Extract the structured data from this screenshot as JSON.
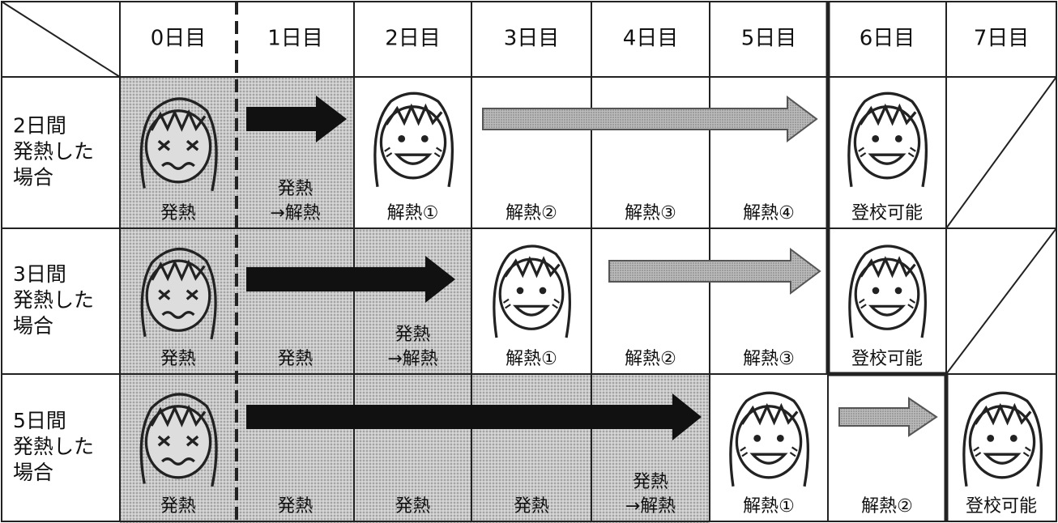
{
  "header": {
    "columns": [
      "0日目",
      "1日目",
      "2日目",
      "3日目",
      "4日目",
      "5日目",
      "6日目",
      "7日目"
    ]
  },
  "rows": [
    {
      "label": [
        "2日間",
        "発熱した",
        "場合"
      ],
      "cells": [
        [
          "発熱"
        ],
        [
          "発熱",
          "→解熱"
        ],
        [
          "解熱①"
        ],
        [
          "解熱②"
        ],
        [
          "解熱③"
        ],
        [
          "解熱④"
        ],
        [
          "登校可能"
        ],
        null
      ]
    },
    {
      "label": [
        "3日間",
        "発熱した",
        "場合"
      ],
      "cells": [
        [
          "発熱"
        ],
        [
          "発熱"
        ],
        [
          "発熱",
          "→解熱"
        ],
        [
          "解熱①"
        ],
        [
          "解熱②"
        ],
        [
          "解熱③"
        ],
        [
          "登校可能"
        ],
        null
      ]
    },
    {
      "label": [
        "5日間",
        "発熱した",
        "場合"
      ],
      "cells": [
        [
          "発熱"
        ],
        [
          "発熱"
        ],
        [
          "発熱"
        ],
        [
          "発熱"
        ],
        [
          "発熱",
          "→解熱"
        ],
        [
          "解熱①"
        ],
        [
          "解熱②"
        ],
        [
          "登校可能"
        ]
      ]
    }
  ]
}
